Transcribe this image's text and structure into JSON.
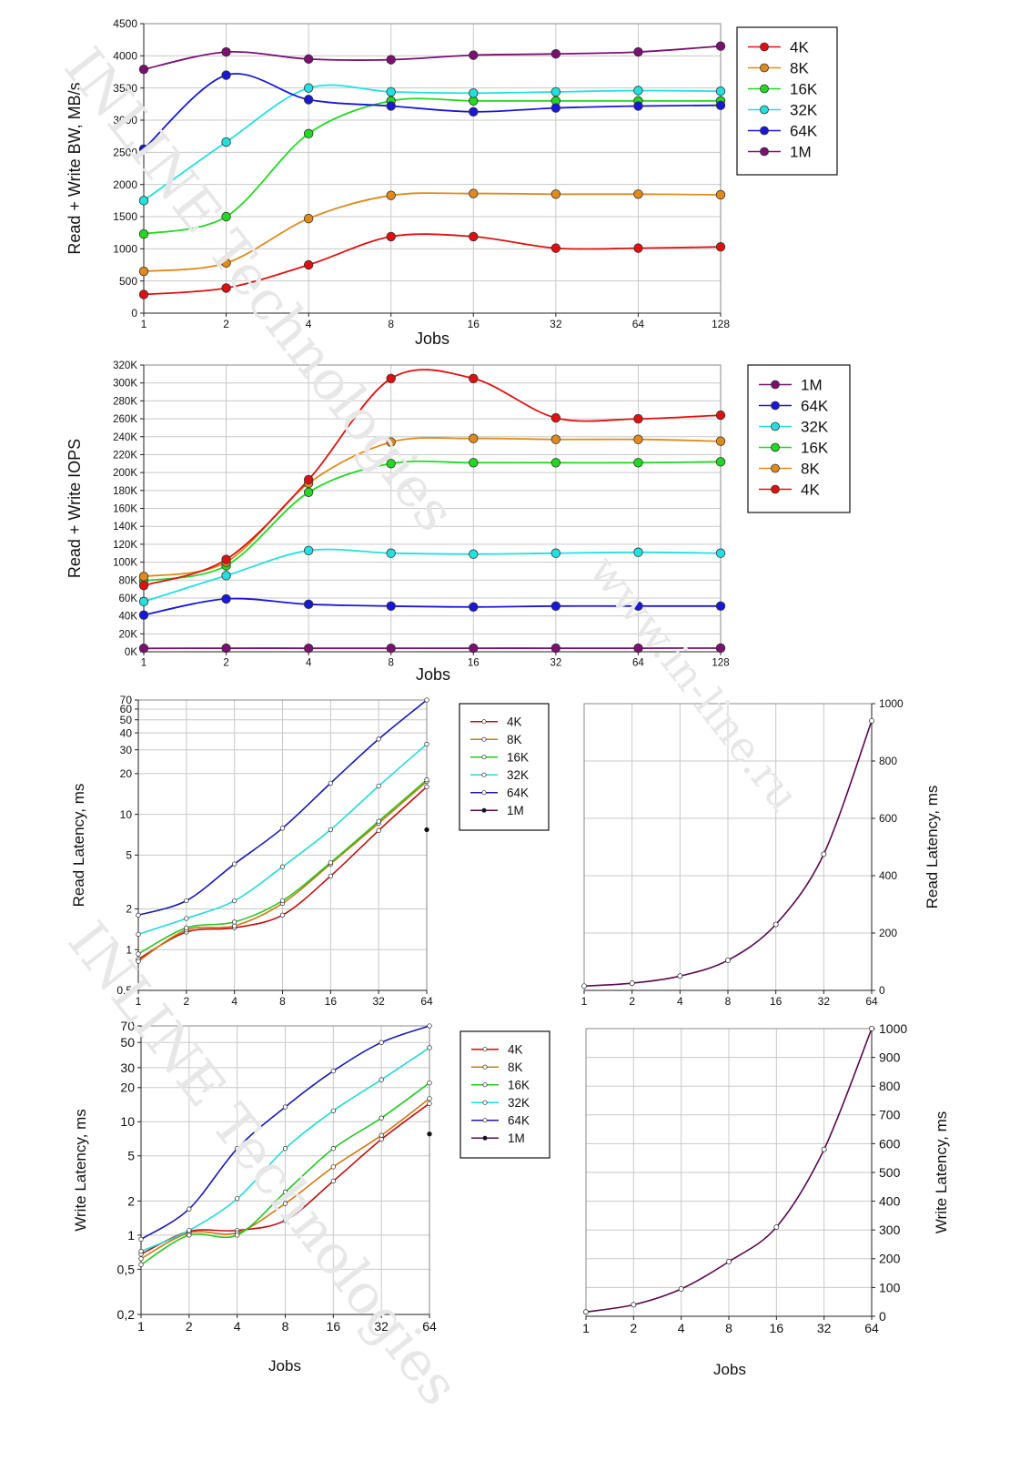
{
  "watermarks": [
    "INLINE Technologies",
    "www.in-line.ru",
    "INLINE Technologies"
  ],
  "chart_data": [
    {
      "id": "bw",
      "type": "line",
      "scale": "log2x-lineary",
      "xlabel": "Jobs",
      "ylabel": "Read + Write BW, MB/s",
      "x": [
        1,
        2,
        4,
        8,
        16,
        32,
        64,
        128
      ],
      "x_tick_labels": [
        "1",
        "2",
        "4",
        "8",
        "16",
        "32",
        "64",
        "128"
      ],
      "ylim": [
        0,
        4500
      ],
      "y_ticks": [
        0,
        500,
        1000,
        1500,
        2000,
        2500,
        3000,
        3500,
        4000,
        4500
      ],
      "y_tick_labels": [
        "0",
        "500",
        "1000",
        "1500",
        "2000",
        "2500",
        "3000",
        "3500",
        "4000",
        "4500"
      ],
      "legend_position": "top-right",
      "series": [
        {
          "name": "4K",
          "color": "#e01010",
          "values": [
            290,
            390,
            750,
            1190,
            1190,
            1010,
            1010,
            1030
          ]
        },
        {
          "name": "8K",
          "color": "#e08a1c",
          "values": [
            650,
            780,
            1470,
            1830,
            1860,
            1850,
            1850,
            1840
          ]
        },
        {
          "name": "16K",
          "color": "#22d822",
          "values": [
            1230,
            1500,
            2790,
            3300,
            3300,
            3300,
            3300,
            3300
          ]
        },
        {
          "name": "32K",
          "color": "#22e0e0",
          "values": [
            1750,
            2660,
            3500,
            3440,
            3420,
            3440,
            3460,
            3450
          ]
        },
        {
          "name": "64K",
          "color": "#1818d8",
          "values": [
            2550,
            3700,
            3320,
            3220,
            3130,
            3190,
            3220,
            3230
          ]
        },
        {
          "name": "1M",
          "color": "#7b1070",
          "values": [
            3790,
            4060,
            3950,
            3940,
            4010,
            4030,
            4060,
            4150
          ]
        }
      ]
    },
    {
      "id": "iops",
      "type": "line",
      "scale": "log2x-lineary",
      "xlabel": "Jobs",
      "ylabel": "Read + Write IOPS",
      "x": [
        1,
        2,
        4,
        8,
        16,
        32,
        64,
        128
      ],
      "x_tick_labels": [
        "1",
        "2",
        "4",
        "8",
        "16",
        "32",
        "64",
        "128"
      ],
      "ylim": [
        0,
        320000
      ],
      "y_ticks": [
        0,
        20000,
        40000,
        60000,
        80000,
        100000,
        120000,
        140000,
        160000,
        180000,
        200000,
        220000,
        240000,
        260000,
        280000,
        300000,
        320000
      ],
      "y_tick_labels": [
        "0K",
        "20K",
        "40K",
        "60K",
        "80K",
        "100K",
        "120K",
        "140K",
        "160K",
        "180K",
        "200K",
        "220K",
        "240K",
        "260K",
        "280K",
        "300K",
        "320K"
      ],
      "legend_position": "top-right",
      "series": [
        {
          "name": "1M",
          "color": "#7b1070",
          "values": [
            3800,
            4000,
            3900,
            3900,
            4000,
            4000,
            4000,
            4100
          ]
        },
        {
          "name": "64K",
          "color": "#1818d8",
          "values": [
            41000,
            59000,
            53000,
            51000,
            50000,
            51000,
            51000,
            51000
          ]
        },
        {
          "name": "32K",
          "color": "#22e0e0",
          "values": [
            56000,
            85000,
            113000,
            110000,
            109000,
            110000,
            111000,
            110000
          ]
        },
        {
          "name": "16K",
          "color": "#22d822",
          "values": [
            79000,
            96000,
            178000,
            210000,
            211000,
            211000,
            211000,
            212000
          ]
        },
        {
          "name": "8K",
          "color": "#e08a1c",
          "values": [
            84000,
            100000,
            188000,
            234000,
            238000,
            237000,
            237000,
            235000
          ]
        },
        {
          "name": "4K",
          "color": "#e01010",
          "values": [
            74000,
            103000,
            192000,
            305000,
            305000,
            261000,
            260000,
            264000
          ]
        }
      ]
    },
    {
      "id": "read-lat",
      "type": "line",
      "scale": "log2x-logy",
      "xlabel": "",
      "ylabel": "Read Latency, ms",
      "x": [
        1,
        2,
        4,
        8,
        16,
        32,
        64
      ],
      "x_tick_labels": [
        "1",
        "2",
        "4",
        "8",
        "16",
        "32",
        "64"
      ],
      "ylim": [
        0.5,
        70
      ],
      "y_ticks": [
        0.5,
        1,
        2,
        5,
        10,
        20,
        30,
        40,
        50,
        60,
        70
      ],
      "y_tick_labels": [
        "0,5",
        "1",
        "2",
        "5",
        "10",
        "20",
        "30",
        "40",
        "50",
        "60",
        "70"
      ],
      "legend_position": "top-right",
      "series": [
        {
          "name": "4K",
          "color": "#c01010",
          "values": [
            0.85,
            1.35,
            1.45,
            1.8,
            3.5,
            7.6,
            16
          ]
        },
        {
          "name": "8K",
          "color": "#d07810",
          "values": [
            0.82,
            1.4,
            1.5,
            2.2,
            4.3,
            8.6,
            17.5
          ]
        },
        {
          "name": "16K",
          "color": "#22c822",
          "values": [
            0.93,
            1.45,
            1.6,
            2.3,
            4.4,
            8.9,
            18
          ]
        },
        {
          "name": "32K",
          "color": "#22dada",
          "values": [
            1.3,
            1.7,
            2.3,
            4.1,
            7.7,
            16.2,
            33
          ]
        },
        {
          "name": "64K",
          "color": "#1818b8",
          "values": [
            1.8,
            2.3,
            4.3,
            7.9,
            17,
            36,
            70
          ]
        },
        {
          "name": "1M",
          "color": "#5a0a50",
          "values": [
            null,
            null,
            null,
            null,
            null,
            null,
            7.7
          ]
        }
      ]
    },
    {
      "id": "read-lat-1m",
      "type": "line",
      "scale": "log2x-lineary",
      "xlabel": "",
      "ylabel": "Read Latency, ms",
      "x": [
        1,
        2,
        4,
        8,
        16,
        32,
        64
      ],
      "x_tick_labels": [
        "1",
        "2",
        "4",
        "8",
        "16",
        "32",
        "64"
      ],
      "ylim": [
        0,
        1000
      ],
      "y_ticks": [
        0,
        200,
        400,
        600,
        800,
        1000
      ],
      "y_tick_labels": [
        "0",
        "200",
        "400",
        "600",
        "800",
        "1000"
      ],
      "series": [
        {
          "name": "1M",
          "color": "#5a0a50",
          "values": [
            15,
            25,
            50,
            105,
            230,
            475,
            940
          ]
        }
      ]
    },
    {
      "id": "write-lat",
      "type": "line",
      "scale": "log2x-logy",
      "xlabel": "Jobs",
      "ylabel": "Write Latency, ms",
      "x": [
        1,
        2,
        4,
        8,
        16,
        32,
        64
      ],
      "x_tick_labels": [
        "1",
        "2",
        "4",
        "8",
        "16",
        "32",
        "64"
      ],
      "ylim": [
        0.2,
        70
      ],
      "y_ticks": [
        0.2,
        0.5,
        1,
        2,
        5,
        10,
        20,
        30,
        50,
        70
      ],
      "y_tick_labels": [
        "0,2",
        "0,5",
        "1",
        "2",
        "5",
        "10",
        "20",
        "30",
        "50",
        "70"
      ],
      "legend_position": "top-right",
      "series": [
        {
          "name": "4K",
          "color": "#c01010",
          "values": [
            0.68,
            1.08,
            1.1,
            1.35,
            3.0,
            7.0,
            14.5
          ]
        },
        {
          "name": "8K",
          "color": "#d07810",
          "values": [
            0.62,
            1.05,
            1.05,
            1.9,
            4.0,
            7.6,
            16
          ]
        },
        {
          "name": "16K",
          "color": "#22c822",
          "values": [
            0.55,
            1.0,
            1.0,
            2.4,
            5.8,
            10.8,
            22
          ]
        },
        {
          "name": "32K",
          "color": "#22dada",
          "values": [
            0.72,
            1.1,
            2.1,
            5.8,
            12.5,
            23.5,
            45
          ]
        },
        {
          "name": "64K",
          "color": "#1818b8",
          "values": [
            0.92,
            1.7,
            5.8,
            13.5,
            28,
            50,
            70
          ]
        },
        {
          "name": "1M",
          "color": "#5a0a50",
          "values": [
            null,
            null,
            null,
            null,
            null,
            null,
            7.8
          ]
        }
      ]
    },
    {
      "id": "write-lat-1m",
      "type": "line",
      "scale": "log2x-lineary",
      "xlabel": "Jobs",
      "ylabel": "Write Latency, ms",
      "x": [
        1,
        2,
        4,
        8,
        16,
        32,
        64
      ],
      "x_tick_labels": [
        "1",
        "2",
        "4",
        "8",
        "16",
        "32",
        "64"
      ],
      "ylim": [
        0,
        1000
      ],
      "y_ticks": [
        0,
        100,
        200,
        300,
        400,
        500,
        600,
        700,
        800,
        900,
        1000
      ],
      "y_tick_labels": [
        "0",
        "100",
        "200",
        "300",
        "400",
        "500",
        "600",
        "700",
        "800",
        "900",
        "1000"
      ],
      "series": [
        {
          "name": "1M",
          "color": "#5a0a50",
          "values": [
            15,
            40,
            95,
            190,
            310,
            580,
            1000
          ]
        }
      ]
    }
  ]
}
